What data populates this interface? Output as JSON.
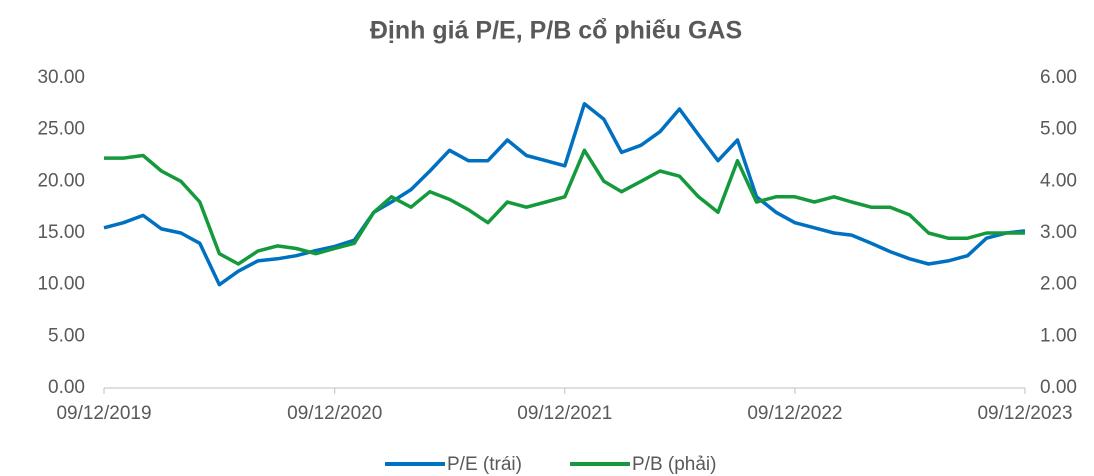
{
  "chart_data": {
    "type": "line",
    "title": "Định giá P/E, P/B cổ phiếu GAS",
    "x": [
      "2019-12-09",
      "2020-01-09",
      "2020-02-09",
      "2020-03-09",
      "2020-04-09",
      "2020-05-09",
      "2020-06-09",
      "2020-07-09",
      "2020-08-09",
      "2020-09-09",
      "2020-10-09",
      "2020-11-09",
      "2020-12-09",
      "2021-01-09",
      "2021-02-09",
      "2021-03-09",
      "2021-04-09",
      "2021-05-09",
      "2021-06-09",
      "2021-07-09",
      "2021-08-09",
      "2021-09-09",
      "2021-10-09",
      "2021-11-09",
      "2021-12-09",
      "2022-01-09",
      "2022-02-09",
      "2022-03-09",
      "2022-04-09",
      "2022-05-09",
      "2022-06-09",
      "2022-07-09",
      "2022-08-09",
      "2022-09-09",
      "2022-10-09",
      "2022-11-09",
      "2022-12-09",
      "2023-01-09",
      "2023-02-09",
      "2023-03-09",
      "2023-04-09",
      "2023-05-09",
      "2023-06-09",
      "2023-07-09",
      "2023-08-09",
      "2023-09-09",
      "2023-10-09",
      "2023-11-09",
      "2023-12-09"
    ],
    "series": [
      {
        "name": "P/E (trái)",
        "color": "#0070c0",
        "values": [
          15.5,
          16,
          16.7,
          15.4,
          15,
          14,
          10,
          11.3,
          12.3,
          12.5,
          12.8,
          13.3,
          13.7,
          14.3,
          17,
          18,
          19.2,
          21,
          23,
          22,
          22,
          24,
          22.5,
          22,
          21.5,
          27.5,
          26,
          22.8,
          23.5,
          24.8,
          27,
          24.5,
          22,
          24,
          18.5,
          17,
          16,
          15.5,
          15,
          14.8,
          14,
          13.2,
          12.5,
          12,
          12.3,
          12.8,
          14.5,
          15,
          15.2
        ]
      },
      {
        "name": "P/B (phải)",
        "color": "#149a3c",
        "axis": "y2",
        "values": [
          4.45,
          4.45,
          4.5,
          4.2,
          4.0,
          3.6,
          2.6,
          2.4,
          2.65,
          2.75,
          2.7,
          2.6,
          2.7,
          2.8,
          3.4,
          3.7,
          3.5,
          3.8,
          3.65,
          3.45,
          3.2,
          3.6,
          3.5,
          3.6,
          3.7,
          4.6,
          4.0,
          3.8,
          4.0,
          4.2,
          4.1,
          3.7,
          3.4,
          4.4,
          3.6,
          3.7,
          3.7,
          3.6,
          3.7,
          3.6,
          3.5,
          3.5,
          3.35,
          3.0,
          2.9,
          2.9,
          3.0,
          3.0,
          3.0
        ]
      }
    ],
    "xlim": [
      "2019-12-09",
      "2023-12-09"
    ],
    "xticks": [
      {
        "value": "2019-12-09",
        "label": "09/12/2019"
      },
      {
        "value": "2020-12-09",
        "label": "09/12/2020"
      },
      {
        "value": "2021-12-09",
        "label": "09/12/2021"
      },
      {
        "value": "2022-12-09",
        "label": "09/12/2022"
      },
      {
        "value": "2023-12-09",
        "label": "09/12/2023"
      }
    ],
    "ylim": [
      0,
      30
    ],
    "yticks": [
      {
        "value": 0,
        "label": "0.00"
      },
      {
        "value": 5,
        "label": "5.00"
      },
      {
        "value": 10,
        "label": "10.00"
      },
      {
        "value": 15,
        "label": "15.00"
      },
      {
        "value": 20,
        "label": "20.00"
      },
      {
        "value": 25,
        "label": "25.00"
      },
      {
        "value": 30,
        "label": "30.00"
      }
    ],
    "y2lim": [
      0,
      6
    ],
    "y2ticks": [
      {
        "value": 0,
        "label": "0.00"
      },
      {
        "value": 1,
        "label": "1.00"
      },
      {
        "value": 2,
        "label": "2.00"
      },
      {
        "value": 3,
        "label": "3.00"
      },
      {
        "value": 4,
        "label": "4.00"
      },
      {
        "value": 5,
        "label": "5.00"
      },
      {
        "value": 6,
        "label": "6.00"
      }
    ],
    "grid": false,
    "legend": "bottom"
  }
}
